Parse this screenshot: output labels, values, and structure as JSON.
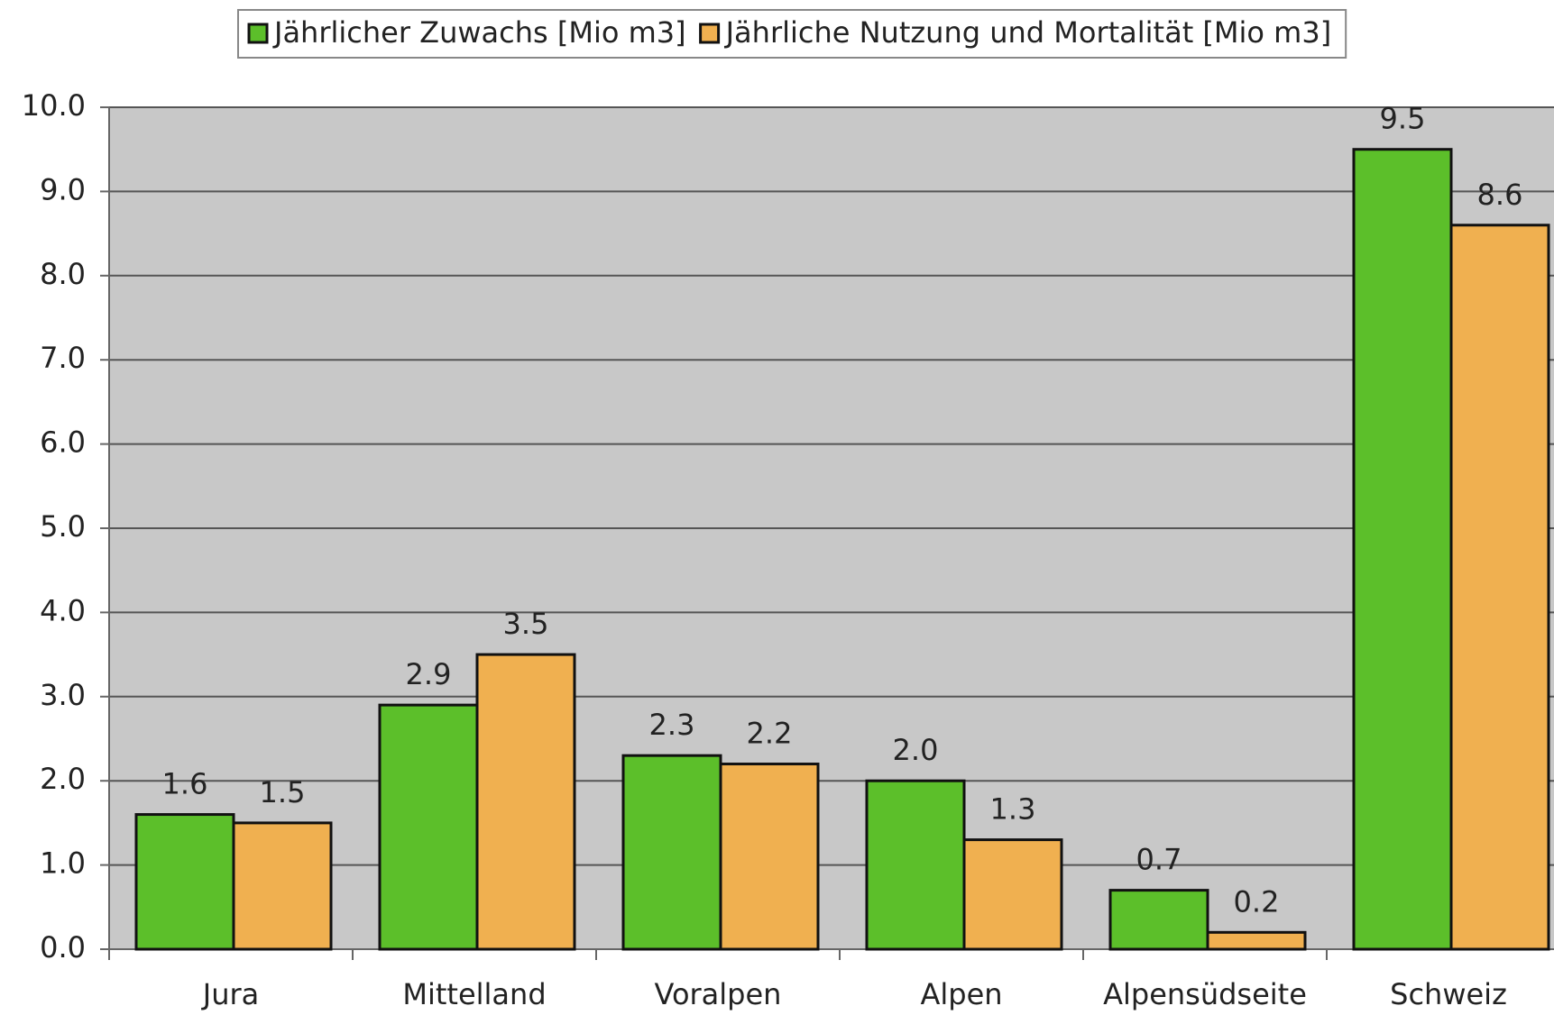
{
  "chart_data": {
    "type": "bar",
    "categories": [
      "Jura",
      "Mittelland",
      "Voralpen",
      "Alpen",
      "Alpensüdseite",
      "Schweiz"
    ],
    "series": [
      {
        "name": "Jährlicher Zuwachs [Mio m3]",
        "color": "#5cbf2a",
        "values": [
          1.6,
          2.9,
          2.3,
          2.0,
          0.7,
          9.5
        ],
        "value_labels": [
          "1.6",
          "2.9",
          "2.3",
          "2.0",
          "0.7",
          "9.5"
        ]
      },
      {
        "name": "Jährliche Nutzung und Mortalität [Mio m3]",
        "color": "#f0b050",
        "values": [
          1.5,
          3.5,
          2.2,
          1.3,
          0.2,
          8.6
        ],
        "value_labels": [
          "1.5",
          "3.5",
          "2.2",
          "1.3",
          "0.2",
          "8.6"
        ]
      }
    ],
    "ylim": [
      0,
      10
    ],
    "yticks": [
      {
        "value": 0,
        "label": "0.0"
      },
      {
        "value": 1,
        "label": "1.0"
      },
      {
        "value": 2,
        "label": "2.0"
      },
      {
        "value": 3,
        "label": "3.0"
      },
      {
        "value": 4,
        "label": "4.0"
      },
      {
        "value": 5,
        "label": "5.0"
      },
      {
        "value": 6,
        "label": "6.0"
      },
      {
        "value": 7,
        "label": "7.0"
      },
      {
        "value": 8,
        "label": "8.0"
      },
      {
        "value": 9,
        "label": "9.0"
      },
      {
        "value": 10,
        "label": "10.0"
      }
    ],
    "grid": true,
    "legend": "top"
  }
}
